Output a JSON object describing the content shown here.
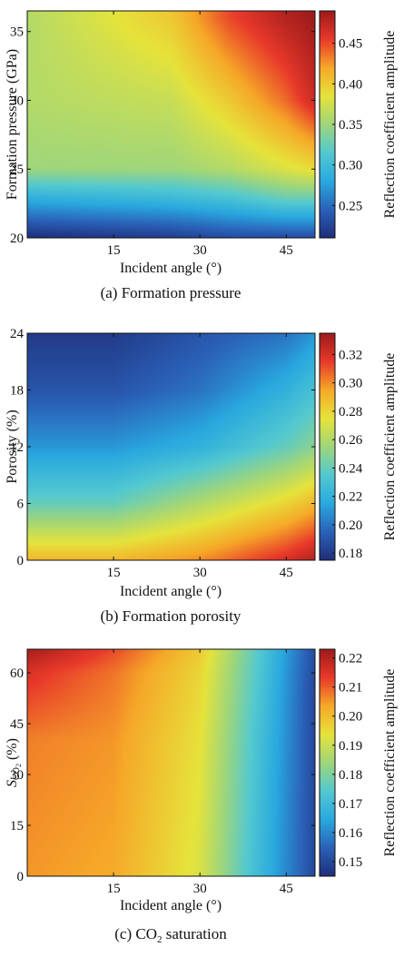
{
  "colormap": [
    "#1f2e7a",
    "#2a62b9",
    "#29a9df",
    "#53c9d0",
    "#9fd67b",
    "#e6e33b",
    "#f6a828",
    "#e8392a",
    "#9e1b1b"
  ],
  "chart_data": [
    {
      "type": "heatmap",
      "caption": "(a) Formation pressure",
      "xlabel": "Incident angle (°)",
      "ylabel": "Formation pressure (GPa)",
      "colorbar_label": "Reflection coefficient amplitude",
      "xlim": [
        0,
        50
      ],
      "ylim": [
        20,
        36.5
      ],
      "xticks": [
        "15",
        "30",
        "45"
      ],
      "xtick_values": [
        15,
        30,
        45
      ],
      "yticks": [
        "20",
        "25",
        "30",
        "35"
      ],
      "ytick_values": [
        20,
        25,
        30,
        35
      ],
      "clim": [
        0.21,
        0.49
      ],
      "cticks": [
        "0.25",
        "0.30",
        "0.35",
        "0.40",
        "0.45"
      ],
      "ctick_values": [
        0.25,
        0.3,
        0.35,
        0.4,
        0.45
      ],
      "grid": false,
      "samples": {
        "x": [
          0,
          25,
          35,
          45,
          50
        ],
        "y": [
          20,
          23,
          25,
          30,
          36
        ],
        "values": [
          [
            0.21,
            0.22,
            0.23,
            0.23,
            0.23
          ],
          [
            0.29,
            0.3,
            0.31,
            0.33,
            0.33
          ],
          [
            0.35,
            0.35,
            0.36,
            0.38,
            0.39
          ],
          [
            0.36,
            0.37,
            0.4,
            0.44,
            0.47
          ],
          [
            0.36,
            0.4,
            0.45,
            0.48,
            0.49
          ]
        ]
      }
    },
    {
      "type": "heatmap",
      "caption": "(b) Formation porosity",
      "xlabel": "Incident angle (°)",
      "ylabel": "Porosity (%)",
      "colorbar_label": "Reflection coefficient amplitude",
      "xlim": [
        0,
        50
      ],
      "ylim": [
        0,
        24
      ],
      "xticks": [
        "15",
        "30",
        "45"
      ],
      "xtick_values": [
        15,
        30,
        45
      ],
      "yticks": [
        "0",
        "6",
        "12",
        "18",
        "24"
      ],
      "ytick_values": [
        0,
        6,
        12,
        18,
        24
      ],
      "clim": [
        0.175,
        0.335
      ],
      "cticks": [
        "0.18",
        "0.20",
        "0.22",
        "0.24",
        "0.26",
        "0.28",
        "0.30",
        "0.32"
      ],
      "ctick_values": [
        0.18,
        0.2,
        0.22,
        0.24,
        0.26,
        0.28,
        0.3,
        0.32
      ],
      "grid": false,
      "samples": {
        "x": [
          0,
          15,
          30,
          45,
          50
        ],
        "y": [
          0,
          6,
          12,
          18,
          24
        ],
        "values": [
          [
            0.29,
            0.29,
            0.3,
            0.32,
            0.33
          ],
          [
            0.24,
            0.24,
            0.26,
            0.28,
            0.29
          ],
          [
            0.21,
            0.21,
            0.22,
            0.24,
            0.25
          ],
          [
            0.19,
            0.19,
            0.2,
            0.22,
            0.23
          ],
          [
            0.18,
            0.18,
            0.19,
            0.2,
            0.21
          ]
        ]
      }
    },
    {
      "type": "heatmap",
      "caption": "(c) CO2 saturation",
      "xlabel": "Incident angle (°)",
      "ylabel": "SCO2 (%)",
      "colorbar_label": "Reflection coefficient amplitude",
      "xlim": [
        0,
        50
      ],
      "ylim": [
        0,
        67
      ],
      "xticks": [
        "15",
        "30",
        "45"
      ],
      "xtick_values": [
        15,
        30,
        45
      ],
      "yticks": [
        "0",
        "15",
        "30",
        "45",
        "60"
      ],
      "ytick_values": [
        0,
        15,
        30,
        45,
        60
      ],
      "clim": [
        0.145,
        0.223
      ],
      "cticks": [
        "0.15",
        "0.16",
        "0.17",
        "0.18",
        "0.19",
        "0.20",
        "0.21",
        "0.22"
      ],
      "ctick_values": [
        0.15,
        0.16,
        0.17,
        0.18,
        0.19,
        0.2,
        0.21,
        0.22
      ],
      "grid": false,
      "samples": {
        "x": [
          0,
          15,
          30,
          40,
          50
        ],
        "y": [
          0,
          20,
          40,
          60,
          67
        ],
        "values": [
          [
            0.205,
            0.203,
            0.192,
            0.17,
            0.15
          ],
          [
            0.206,
            0.204,
            0.193,
            0.171,
            0.15
          ],
          [
            0.207,
            0.205,
            0.194,
            0.172,
            0.15
          ],
          [
            0.215,
            0.208,
            0.196,
            0.174,
            0.15
          ],
          [
            0.222,
            0.212,
            0.198,
            0.175,
            0.151
          ]
        ]
      }
    }
  ]
}
